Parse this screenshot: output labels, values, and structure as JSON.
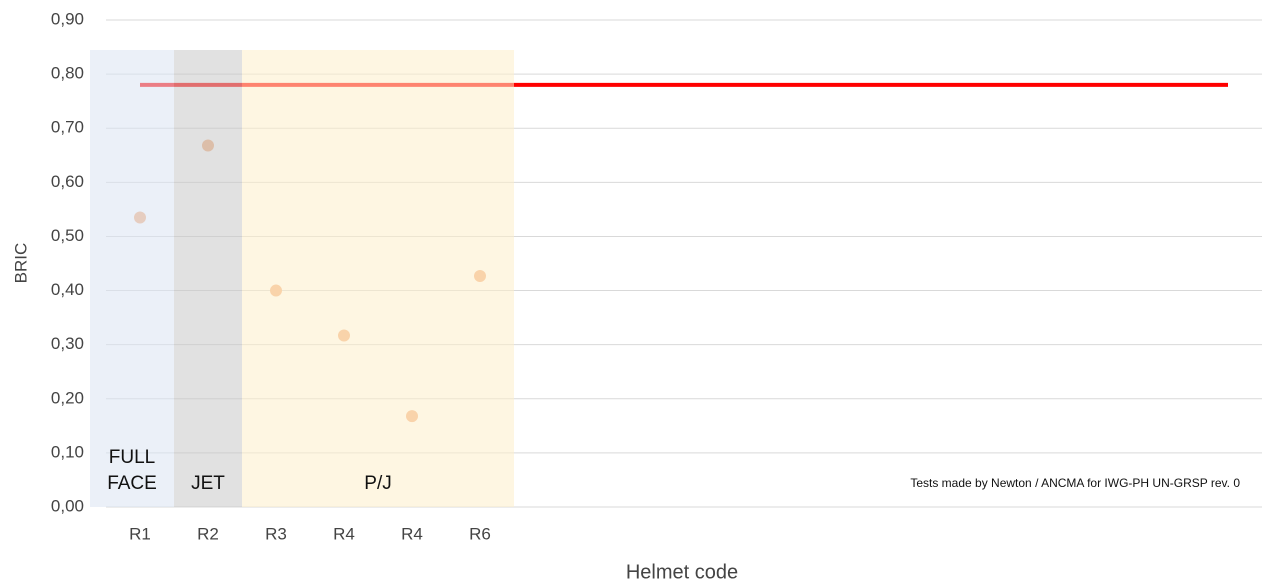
{
  "chart_data": {
    "type": "scatter",
    "x_label": "Helmet code",
    "y_label": "BRIC",
    "annotation": "Tests made by Newton / ANCMA for IWG-PH UN-GRSP rev. 0",
    "categories": [
      "R1",
      "R2",
      "R3",
      "R4",
      "R4",
      "R6",
      null,
      null,
      null,
      null,
      null,
      null,
      null,
      null,
      null,
      null,
      null
    ],
    "series": [
      {
        "kind": "points",
        "color": "#f4b183",
        "values": [
          0.535,
          0.668,
          0.4,
          0.317,
          0.168,
          0.427,
          null,
          null,
          null,
          null,
          null,
          null,
          null,
          null,
          null,
          null,
          null
        ]
      },
      {
        "kind": "line",
        "color": "#ff0000",
        "values": [
          0.78,
          0.78,
          0.78,
          0.78,
          0.78,
          0.78,
          0.78,
          0.78,
          0.78,
          0.78,
          0.78,
          0.78,
          0.78,
          0.78,
          0.78,
          0.78,
          0.78
        ]
      }
    ],
    "regions": [
      {
        "label": "FULL FACE",
        "start": 0,
        "end": 0,
        "color": "#dae3f3"
      },
      {
        "label": "JET",
        "start": 1,
        "end": 1,
        "color": "#c9c9c9"
      },
      {
        "label": "P/J",
        "start": 2,
        "end": 5,
        "color": "#fdeecb"
      }
    ],
    "ylim": [
      0,
      0.9
    ],
    "yticks": [
      {
        "value": 0,
        "label": "0,00"
      },
      {
        "value": 0.1,
        "label": "0,10"
      },
      {
        "value": 0.2,
        "label": "0,20"
      },
      {
        "value": 0.3,
        "label": "0,30"
      },
      {
        "value": 0.4,
        "label": "0,40"
      },
      {
        "value": 0.5,
        "label": "0,50"
      },
      {
        "value": 0.6,
        "label": "0,60"
      },
      {
        "value": 0.7,
        "label": "0,70"
      },
      {
        "value": 0.8,
        "label": "0,80"
      },
      {
        "value": 0.9,
        "label": "0,90"
      }
    ],
    "grid": true
  }
}
